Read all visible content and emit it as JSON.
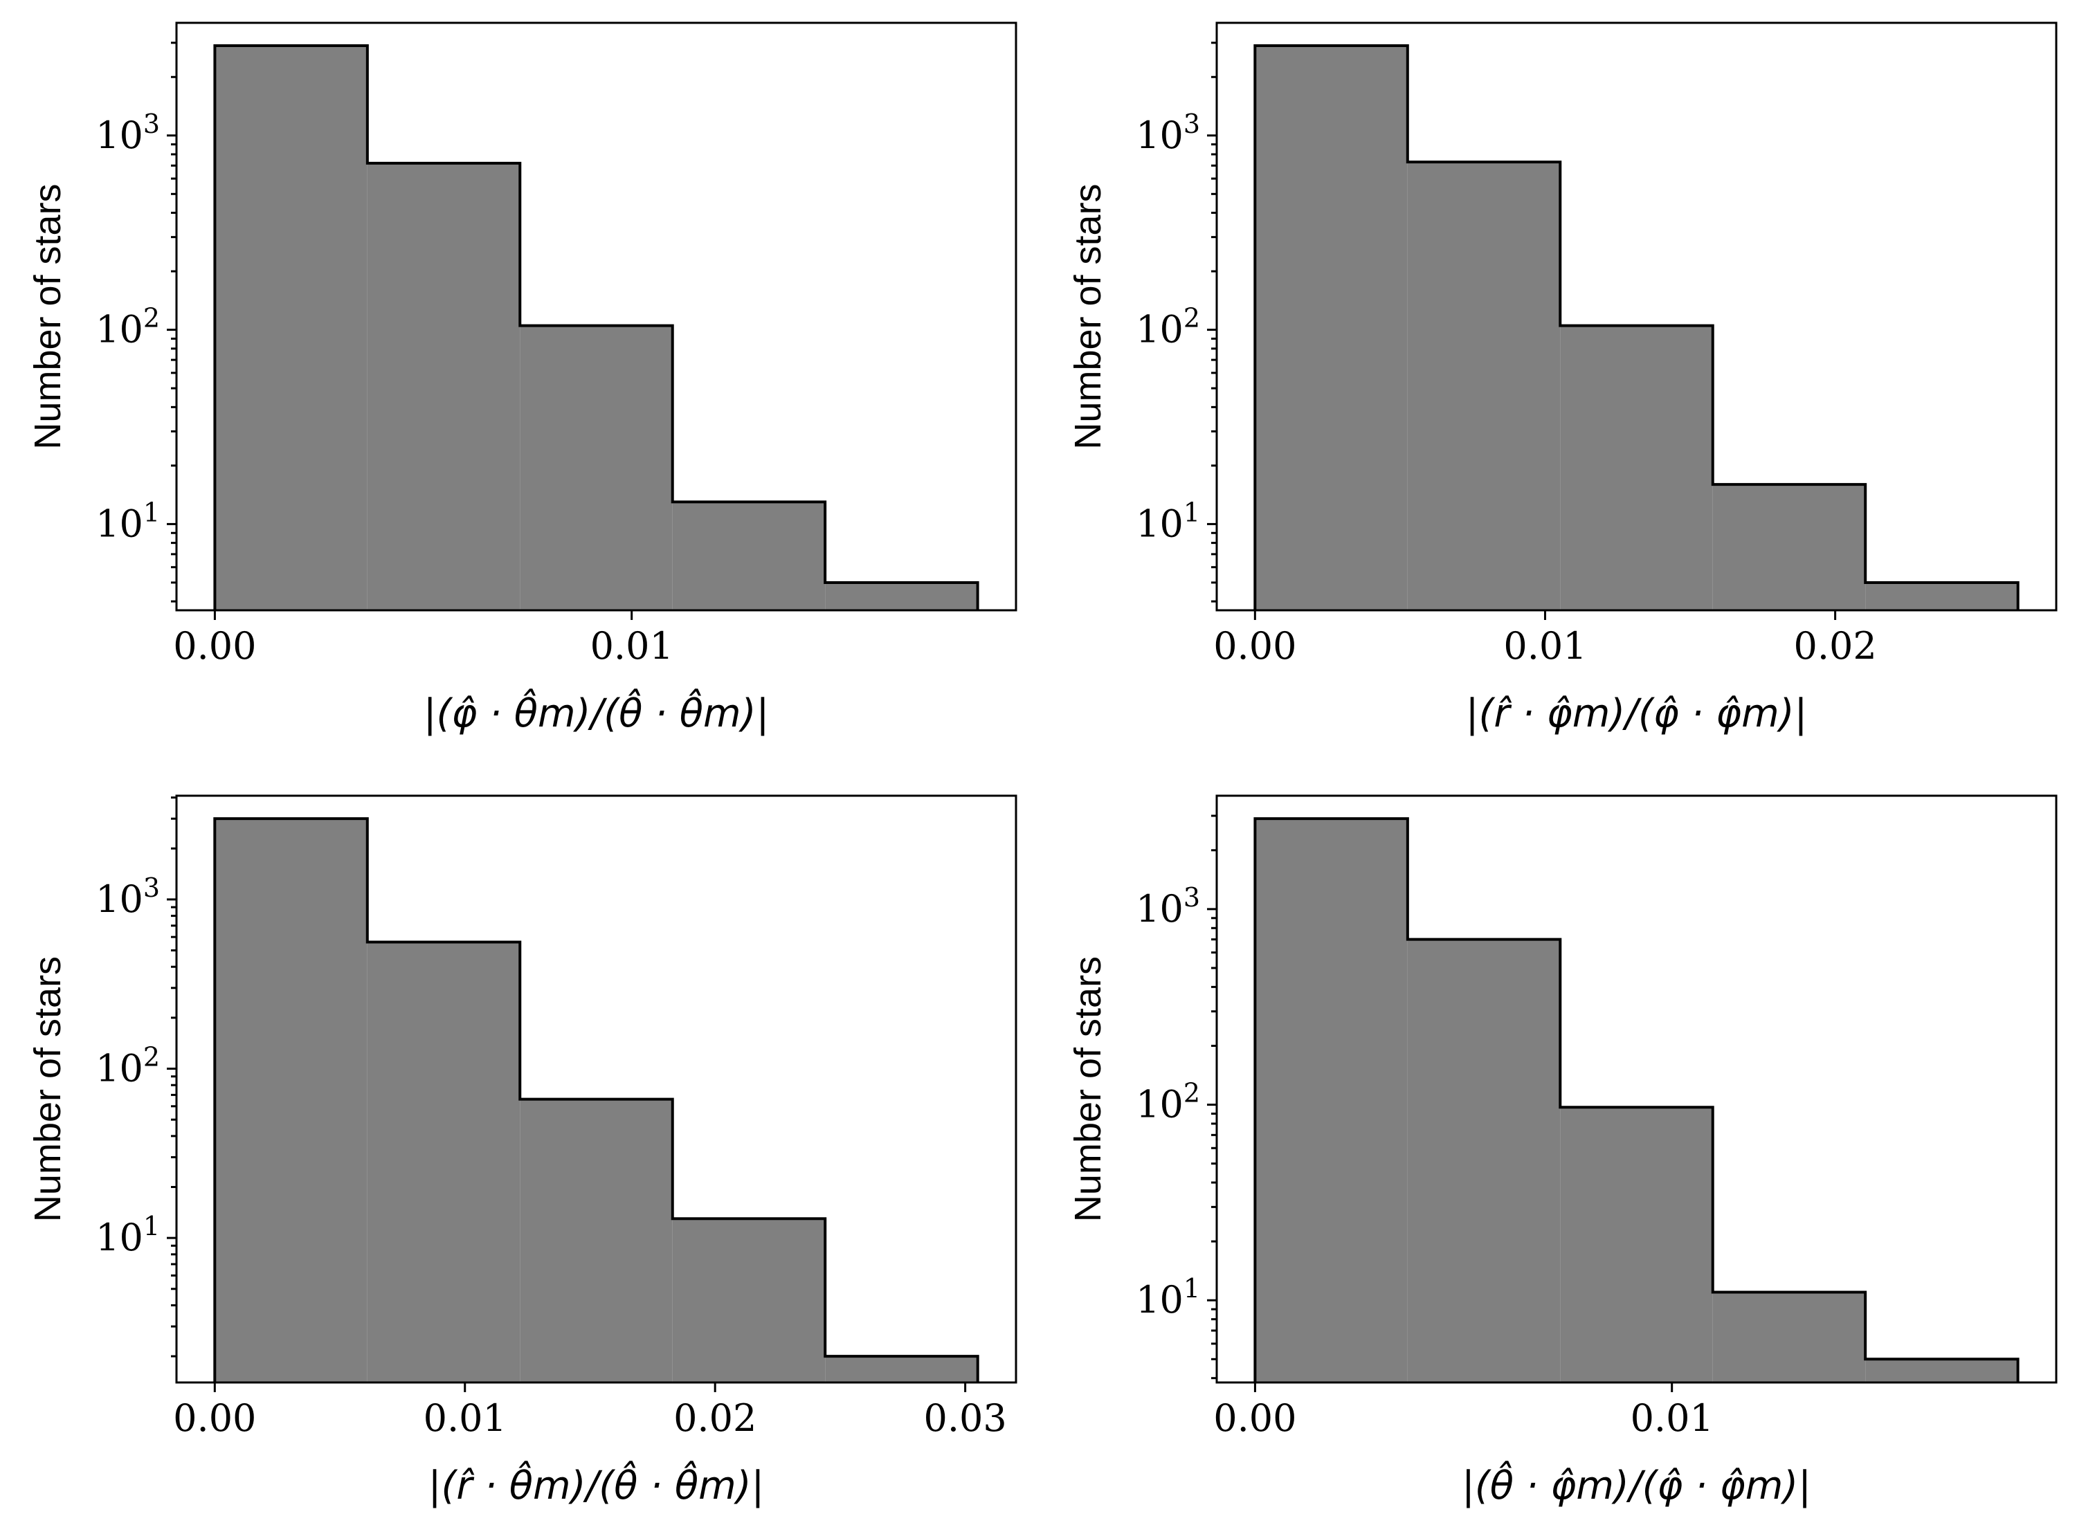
{
  "chart_data": [
    {
      "type": "bar",
      "subtype": "histogram",
      "xlabel": "|(φ̂ · θ̂m)/(θ̂ · θ̂m)|",
      "ylabel": "Number of stars",
      "yscale": "log",
      "bin_edges": [
        0.0,
        0.00366,
        0.00732,
        0.01098,
        0.01464,
        0.0183
      ],
      "values": [
        2900,
        720,
        105,
        13,
        5
      ],
      "xlim": [
        -0.00092,
        0.01922
      ],
      "ylim": [
        3.6,
        3800
      ],
      "xticks": [
        0.0,
        0.01
      ],
      "xtick_labels": [
        "0.00",
        "0.01"
      ],
      "yticks": [
        10,
        100,
        1000
      ],
      "ytick_labels": [
        {
          "base": "10",
          "exp": "1"
        },
        {
          "base": "10",
          "exp": "2"
        },
        {
          "base": "10",
          "exp": "3"
        }
      ]
    },
    {
      "type": "bar",
      "subtype": "histogram",
      "xlabel": "|(r̂ · φ̂m)/(φ̂ · φ̂m)|",
      "ylabel": "Number of stars",
      "yscale": "log",
      "bin_edges": [
        0.0,
        0.00526,
        0.01052,
        0.01578,
        0.02104,
        0.0263
      ],
      "values": [
        2900,
        730,
        105,
        16,
        5
      ],
      "xlim": [
        -0.00132,
        0.02762
      ],
      "ylim": [
        3.6,
        3800
      ],
      "xticks": [
        0.0,
        0.01,
        0.02
      ],
      "xtick_labels": [
        "0.00",
        "0.01",
        "0.02"
      ],
      "yticks": [
        10,
        100,
        1000
      ],
      "ytick_labels": [
        {
          "base": "10",
          "exp": "1"
        },
        {
          "base": "10",
          "exp": "2"
        },
        {
          "base": "10",
          "exp": "3"
        }
      ]
    },
    {
      "type": "bar",
      "subtype": "histogram",
      "xlabel": "|(r̂ · θ̂m)/(θ̂ · θ̂m)|",
      "ylabel": "Number of stars",
      "yscale": "log",
      "bin_edges": [
        0.0,
        0.0061,
        0.0122,
        0.0183,
        0.0244,
        0.0305
      ],
      "values": [
        3000,
        560,
        66,
        13,
        2
      ],
      "xlim": [
        -0.00153,
        0.03203
      ],
      "ylim": [
        1.4,
        4100
      ],
      "xticks": [
        0.0,
        0.01,
        0.02,
        0.03
      ],
      "xtick_labels": [
        "0.00",
        "0.01",
        "0.02",
        "0.03"
      ],
      "yticks": [
        10,
        100,
        1000
      ],
      "ytick_labels": [
        {
          "base": "10",
          "exp": "1"
        },
        {
          "base": "10",
          "exp": "2"
        },
        {
          "base": "10",
          "exp": "3"
        }
      ]
    },
    {
      "type": "bar",
      "subtype": "histogram",
      "xlabel": "|(θ̂ · φ̂m)/(φ̂ · φ̂m)|",
      "ylabel": "Number of stars",
      "yscale": "log",
      "bin_edges": [
        0.0,
        0.00366,
        0.00732,
        0.01098,
        0.01464,
        0.0183
      ],
      "values": [
        2900,
        700,
        97,
        11,
        5
      ],
      "xlim": [
        -0.00092,
        0.01922
      ],
      "ylim": [
        3.8,
        3800
      ],
      "xticks": [
        0.0,
        0.01
      ],
      "xtick_labels": [
        "0.00",
        "0.01"
      ],
      "yticks": [
        10,
        100,
        1000
      ],
      "ytick_labels": [
        {
          "base": "10",
          "exp": "1"
        },
        {
          "base": "10",
          "exp": "2"
        },
        {
          "base": "10",
          "exp": "3"
        }
      ]
    }
  ]
}
